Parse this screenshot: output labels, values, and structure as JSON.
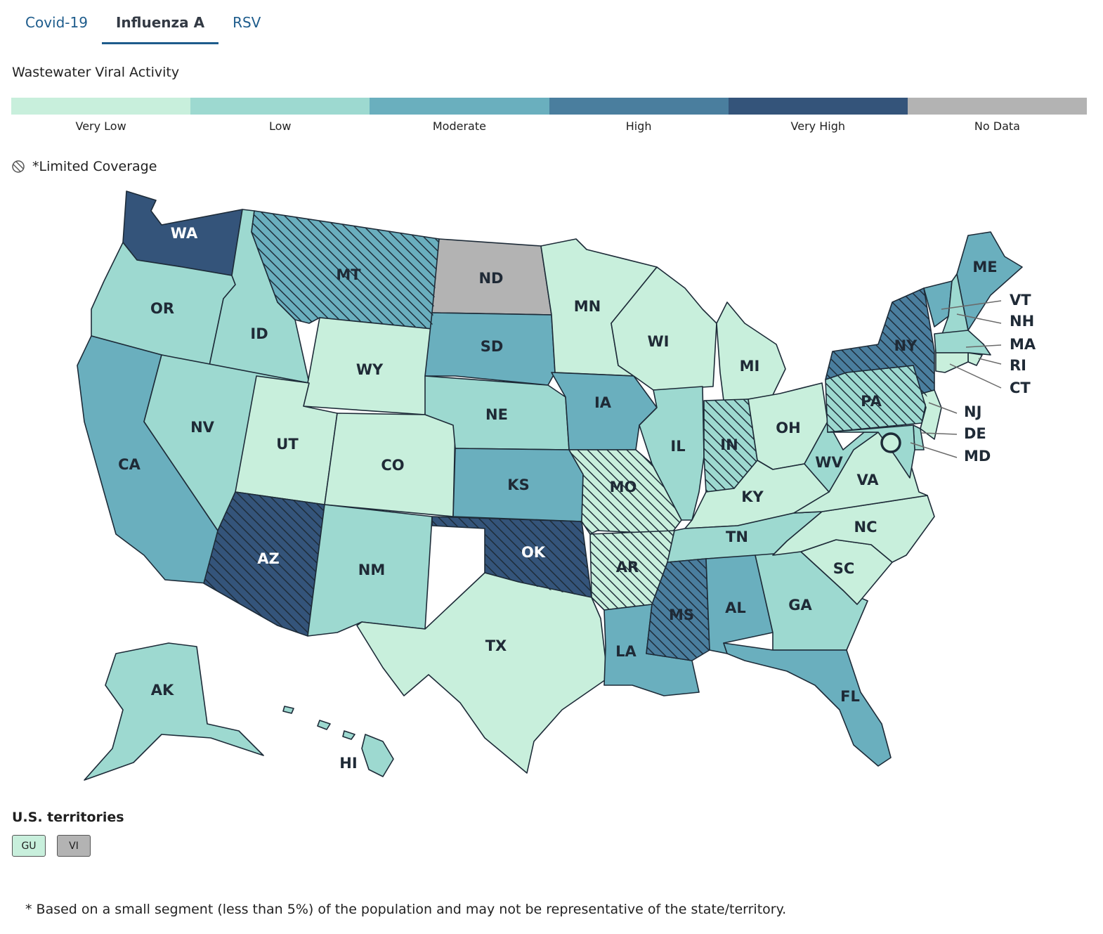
{
  "tabs": [
    {
      "label": "Covid-19",
      "active": false
    },
    {
      "label": "Influenza A",
      "active": true
    },
    {
      "label": "RSV",
      "active": false
    }
  ],
  "legend": {
    "title": "Wastewater Viral Activity",
    "levels": [
      {
        "label": "Very Low",
        "color": "#c8efdc"
      },
      {
        "label": "Low",
        "color": "#9dd9d0"
      },
      {
        "label": "Moderate",
        "color": "#6aafbe"
      },
      {
        "label": "High",
        "color": "#4a7e9e"
      },
      {
        "label": "Very High",
        "color": "#34547a"
      },
      {
        "label": "No Data",
        "color": "#b3b3b3"
      }
    ],
    "limited_coverage_label": "*Limited Coverage",
    "limited_coverage_icon": "hatch-circle-icon"
  },
  "map": {
    "states": [
      {
        "abbr": "WA",
        "level": "Very High",
        "limited": false
      },
      {
        "abbr": "OR",
        "level": "Low",
        "limited": false
      },
      {
        "abbr": "CA",
        "level": "Moderate",
        "limited": false
      },
      {
        "abbr": "ID",
        "level": "Low",
        "limited": false
      },
      {
        "abbr": "NV",
        "level": "Low",
        "limited": false
      },
      {
        "abbr": "MT",
        "level": "Moderate",
        "limited": true
      },
      {
        "abbr": "WY",
        "level": "Very Low",
        "limited": false
      },
      {
        "abbr": "UT",
        "level": "Very Low",
        "limited": false
      },
      {
        "abbr": "CO",
        "level": "Very Low",
        "limited": false
      },
      {
        "abbr": "AZ",
        "level": "Very High",
        "limited": true
      },
      {
        "abbr": "NM",
        "level": "Low",
        "limited": false
      },
      {
        "abbr": "ND",
        "level": "No Data",
        "limited": false
      },
      {
        "abbr": "SD",
        "level": "Moderate",
        "limited": false
      },
      {
        "abbr": "NE",
        "level": "Low",
        "limited": false
      },
      {
        "abbr": "KS",
        "level": "Moderate",
        "limited": false
      },
      {
        "abbr": "OK",
        "level": "Very High",
        "limited": true
      },
      {
        "abbr": "TX",
        "level": "Very Low",
        "limited": false
      },
      {
        "abbr": "MN",
        "level": "Very Low",
        "limited": false
      },
      {
        "abbr": "IA",
        "level": "Moderate",
        "limited": false
      },
      {
        "abbr": "MO",
        "level": "Very Low",
        "limited": true
      },
      {
        "abbr": "AR",
        "level": "Very Low",
        "limited": true
      },
      {
        "abbr": "LA",
        "level": "Moderate",
        "limited": false
      },
      {
        "abbr": "WI",
        "level": "Very Low",
        "limited": false
      },
      {
        "abbr": "IL",
        "level": "Low",
        "limited": false
      },
      {
        "abbr": "MI",
        "level": "Very Low",
        "limited": false
      },
      {
        "abbr": "IN",
        "level": "Low",
        "limited": true
      },
      {
        "abbr": "OH",
        "level": "Very Low",
        "limited": false
      },
      {
        "abbr": "KY",
        "level": "Very Low",
        "limited": false
      },
      {
        "abbr": "TN",
        "level": "Low",
        "limited": false
      },
      {
        "abbr": "MS",
        "level": "High",
        "limited": true
      },
      {
        "abbr": "AL",
        "level": "Moderate",
        "limited": false
      },
      {
        "abbr": "GA",
        "level": "Low",
        "limited": false
      },
      {
        "abbr": "FL",
        "level": "Moderate",
        "limited": false
      },
      {
        "abbr": "SC",
        "level": "Very Low",
        "limited": false
      },
      {
        "abbr": "NC",
        "level": "Very Low",
        "limited": false
      },
      {
        "abbr": "VA",
        "level": "Very Low",
        "limited": false
      },
      {
        "abbr": "WV",
        "level": "Low",
        "limited": false
      },
      {
        "abbr": "PA",
        "level": "Low",
        "limited": true
      },
      {
        "abbr": "NY",
        "level": "High",
        "limited": true
      },
      {
        "abbr": "ME",
        "level": "Moderate",
        "limited": false
      },
      {
        "abbr": "VT",
        "level": "Moderate",
        "limited": false
      },
      {
        "abbr": "NH",
        "level": "Low",
        "limited": false
      },
      {
        "abbr": "MA",
        "level": "Low",
        "limited": false
      },
      {
        "abbr": "RI",
        "level": "Very Low",
        "limited": false
      },
      {
        "abbr": "CT",
        "level": "Very Low",
        "limited": false
      },
      {
        "abbr": "NJ",
        "level": "Very Low",
        "limited": false
      },
      {
        "abbr": "DE",
        "level": "Low",
        "limited": false
      },
      {
        "abbr": "MD",
        "level": "Low",
        "limited": false
      },
      {
        "abbr": "AK",
        "level": "Low",
        "limited": false
      },
      {
        "abbr": "HI",
        "level": "Low",
        "limited": false
      },
      {
        "abbr": "DC",
        "level": "Very Low",
        "limited": false
      }
    ]
  },
  "territories": {
    "title": "U.S. territories",
    "items": [
      {
        "label": "GU",
        "level": "Very Low"
      },
      {
        "label": "VI",
        "level": "No Data"
      }
    ]
  },
  "footnote": "* Based on a small segment (less than 5%) of the population and may not be representative of the state/territory."
}
